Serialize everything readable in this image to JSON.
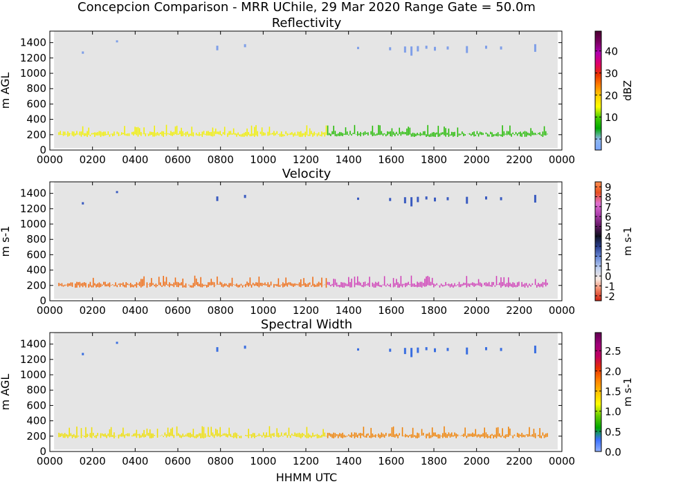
{
  "figure": {
    "suptitle": "Concepcion Comparison - MRR UChile, 29 Mar 2020 Range Gate = 50.0m",
    "xlabel": "HHMM UTC"
  },
  "chart_data": [
    {
      "type": "heatmap",
      "title": "Reflectivity",
      "ylabel": "m AGL",
      "colorbar_label": "dBZ",
      "xlim": [
        0,
        2400
      ],
      "ylim": [
        0,
        1550
      ],
      "x_ticks": [
        "0000",
        "0200",
        "0400",
        "0600",
        "0800",
        "1000",
        "1200",
        "1400",
        "1600",
        "1800",
        "2000",
        "2200",
        "0000"
      ],
      "y_ticks": [
        0,
        200,
        400,
        600,
        800,
        1000,
        1200,
        1400
      ],
      "colorbar_range": [
        -5,
        49
      ],
      "colorbar_ticks": [
        "0",
        "10",
        "20",
        "30",
        "40"
      ],
      "colorbar_tick_values": [
        0,
        10,
        20,
        30,
        40
      ],
      "colormap": [
        "#7aa6ff",
        "#8fb8ee",
        "#00a800",
        "#44cc00",
        "#ffff00",
        "#ffd000",
        "#ff8000",
        "#e83000",
        "#e0006c",
        "#b000b0",
        "#7a0060",
        "#4a0030"
      ],
      "band_color_early": "#f2f000",
      "band_color_late": "#22bb00",
      "upper_color": "#7f9fe8"
    },
    {
      "type": "heatmap",
      "title": "Velocity",
      "ylabel": "m s-1",
      "colorbar_label": "m s-1",
      "xlim": [
        0,
        2400
      ],
      "ylim": [
        0,
        1550
      ],
      "x_ticks": [
        "0000",
        "0200",
        "0400",
        "0600",
        "0800",
        "1000",
        "1200",
        "1400",
        "1600",
        "1800",
        "2000",
        "2200",
        "0000"
      ],
      "y_ticks": [
        0,
        200,
        400,
        600,
        800,
        1000,
        1200,
        1400
      ],
      "colorbar_range": [
        -2.5,
        9.5
      ],
      "colorbar_ticks": [
        "-2",
        "-1",
        "0",
        "1",
        "2",
        "3",
        "4",
        "5",
        "6",
        "7",
        "8",
        "9"
      ],
      "colorbar_tick_values": [
        -2,
        -1,
        0,
        1,
        2,
        3,
        4,
        5,
        6,
        7,
        8,
        9
      ],
      "colormap": [
        "#d02010",
        "#f08060",
        "#f8e8e0",
        "#c0d0f0",
        "#6a8ad8",
        "#2a3f90",
        "#101020",
        "#6a1a6a",
        "#b040b0",
        "#e070d0",
        "#e85020",
        "#ff9050"
      ],
      "band_color_early": "#f06a10",
      "band_color_late": "#d040b8",
      "upper_color": "#3a5bc0"
    },
    {
      "type": "heatmap",
      "title": "Spectral Width",
      "ylabel": "m AGL",
      "colorbar_label": "m s-1",
      "xlim": [
        0,
        2400
      ],
      "ylim": [
        0,
        1550
      ],
      "x_ticks": [
        "0000",
        "0200",
        "0400",
        "0600",
        "0800",
        "1000",
        "1200",
        "1400",
        "1600",
        "1800",
        "2000",
        "2200",
        "0000"
      ],
      "y_ticks": [
        0,
        200,
        400,
        600,
        800,
        1000,
        1200,
        1400
      ],
      "colorbar_range": [
        0,
        2.95
      ],
      "colorbar_ticks": [
        "0.0",
        "0.5",
        "1.0",
        "1.5",
        "2.0",
        "2.5"
      ],
      "colorbar_tick_values": [
        0,
        0.5,
        1.0,
        1.5,
        2.0,
        2.5
      ],
      "colormap": [
        "#8fb0ff",
        "#3a70ff",
        "#00a800",
        "#66cc00",
        "#ffff00",
        "#ffc000",
        "#ff8000",
        "#e83000",
        "#c00060",
        "#a0007a",
        "#600050"
      ],
      "band_color_early": "#f0e000",
      "band_color_late": "#f08000",
      "upper_color": "#3a6ee0"
    }
  ]
}
